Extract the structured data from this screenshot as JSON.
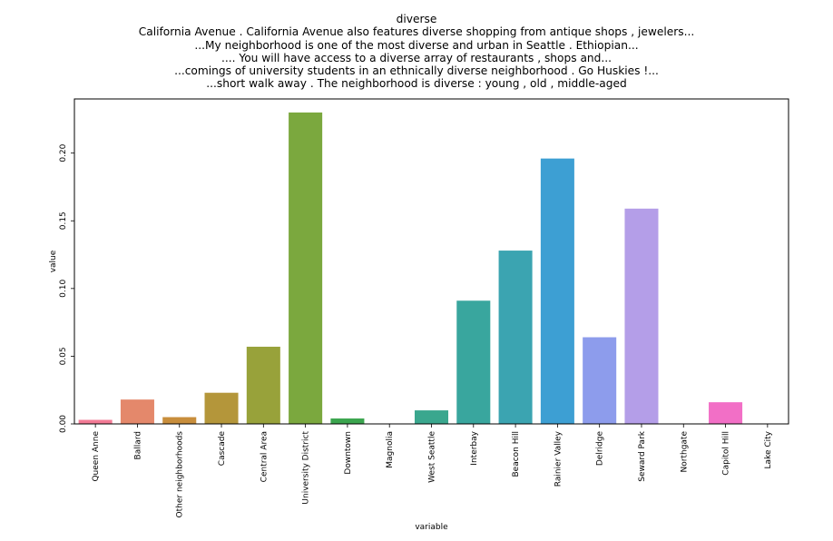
{
  "title_lines": [
    "diverse",
    "California Avenue . California Avenue also features diverse shopping from antique shops , jewelers...",
    "...My neighborhood is one of the most diverse and urban in Seattle . Ethiopian...",
    ".... You will have access to a diverse array of restaurants , shops and...",
    "...comings of university students in an ethnically diverse neighborhood . Go Huskies !...",
    "...short walk away . The neighborhood is diverse : young , old , middle-aged"
  ],
  "chart_data": {
    "type": "bar",
    "xlabel": "variable",
    "ylabel": "value",
    "ylim": [
      0,
      0.24
    ],
    "yticks": [
      "0.00",
      "0.05",
      "0.10",
      "0.15",
      "0.20"
    ],
    "ytick_values": [
      0,
      0.05,
      0.1,
      0.15,
      0.2
    ],
    "grid": false,
    "categories": [
      "Queen Anne",
      "Ballard",
      "Other neighborhoods",
      "Cascade",
      "Central Area",
      "University District",
      "Downtown",
      "Magnolia",
      "West Seattle",
      "Interbay",
      "Beacon Hill",
      "Rainier Valley",
      "Delridge",
      "Seward Park",
      "Northgate",
      "Capitol Hill",
      "Lake City"
    ],
    "values": [
      0.003,
      0.018,
      0.005,
      0.023,
      0.057,
      0.23,
      0.004,
      0.0,
      0.01,
      0.091,
      0.128,
      0.196,
      0.064,
      0.159,
      0.0,
      0.016,
      0.0
    ],
    "colors": [
      "#f37b96",
      "#e4886b",
      "#c88e3c",
      "#b4963a",
      "#98a23a",
      "#7ba83e",
      "#3ba54e",
      "#3aa678",
      "#3aa78e",
      "#39a69e",
      "#3ba4b1",
      "#3d9fd3",
      "#8d9cec",
      "#b49ee8",
      "#dc8ae3",
      "#f26fc6",
      "#f476ab"
    ]
  }
}
